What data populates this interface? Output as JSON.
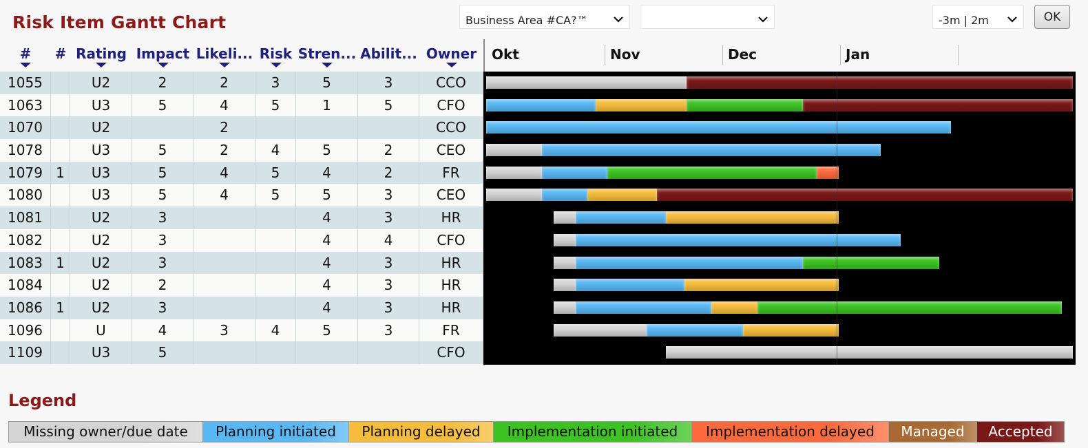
{
  "title": "Risk Item Gantt Chart",
  "filters": {
    "business_area": "Business Area #CA?™",
    "second_filter": "",
    "range": "-3m | 2m",
    "ok_label": "OK"
  },
  "columns": [
    {
      "label": "#",
      "sortable": true
    },
    {
      "label": "#",
      "sortable": false
    },
    {
      "label": "Rating",
      "sortable": true
    },
    {
      "label": "Impact",
      "sortable": true
    },
    {
      "label": "Likeli...",
      "sortable": true
    },
    {
      "label": "Risk",
      "sortable": true
    },
    {
      "label": "Stren...",
      "sortable": true
    },
    {
      "label": "Abilit...",
      "sortable": false
    },
    {
      "label": "Owner",
      "sortable": true
    }
  ],
  "months": [
    "Okt",
    "Nov",
    "Dec",
    "Jan"
  ],
  "status_colors": {
    "missing": "#d4d4d4",
    "planning": "#59b8f3",
    "planning_delayed": "#f6bd3c",
    "implementation": "#3cc323",
    "implementation_delayed": "#ff6a3d",
    "managed": "#a86a32",
    "accepted": "#7a1818"
  },
  "legend": {
    "title": "Legend",
    "items": [
      {
        "label": "Missing owner/due date",
        "status": "missing",
        "text_color": "#111"
      },
      {
        "label": "Planning initiated",
        "status": "planning",
        "text_color": "#111"
      },
      {
        "label": "Planning delayed",
        "status": "planning_delayed",
        "text_color": "#111"
      },
      {
        "label": "Implementation initiated",
        "status": "implementation",
        "text_color": "#111"
      },
      {
        "label": "Implementation delayed",
        "status": "implementation_delayed",
        "text_color": "#111"
      },
      {
        "label": "Managed",
        "status": "managed",
        "text_color": "#ffffff"
      },
      {
        "label": "Accepted",
        "status": "accepted",
        "text_color": "#ffffff"
      }
    ]
  },
  "rows": [
    {
      "id": "1055",
      "n": "",
      "rating": "U2",
      "impact": "2",
      "likelihood": "2",
      "risk": "3",
      "strength": "5",
      "ability": "3",
      "owner": "CCO",
      "segments": [
        [
          "missing",
          0.5,
          34.3
        ],
        [
          "accepted",
          34.3,
          99.5
        ]
      ]
    },
    {
      "id": "1063",
      "n": "",
      "rating": "U3",
      "impact": "5",
      "likelihood": "4",
      "risk": "5",
      "strength": "1",
      "ability": "5",
      "owner": "CFO",
      "segments": [
        [
          "planning",
          0.5,
          19.0
        ],
        [
          "planning_delayed",
          19.0,
          34.3
        ],
        [
          "implementation",
          34.3,
          54.0
        ],
        [
          "accepted",
          54.0,
          99.5
        ]
      ]
    },
    {
      "id": "1070",
      "n": "",
      "rating": "U2",
      "impact": "",
      "likelihood": "2",
      "risk": "",
      "strength": "",
      "ability": "",
      "owner": "CCO",
      "segments": [
        [
          "planning",
          0.5,
          79.0
        ]
      ]
    },
    {
      "id": "1078",
      "n": "",
      "rating": "U3",
      "impact": "5",
      "likelihood": "2",
      "risk": "4",
      "strength": "5",
      "ability": "2",
      "owner": "CEO",
      "segments": [
        [
          "missing",
          0.5,
          9.9
        ],
        [
          "planning",
          9.9,
          67.1
        ]
      ]
    },
    {
      "id": "1079",
      "n": "1",
      "rating": "U3",
      "impact": "5",
      "likelihood": "4",
      "risk": "5",
      "strength": "4",
      "ability": "2",
      "owner": "FR",
      "segments": [
        [
          "missing",
          0.5,
          9.9
        ],
        [
          "planning",
          9.9,
          20.9
        ],
        [
          "implementation",
          20.9,
          56.3
        ],
        [
          "implementation_delayed",
          56.3,
          60.0
        ]
      ]
    },
    {
      "id": "1080",
      "n": "",
      "rating": "U3",
      "impact": "5",
      "likelihood": "4",
      "risk": "5",
      "strength": "5",
      "ability": "3",
      "owner": "CEO",
      "segments": [
        [
          "missing",
          0.5,
          9.9
        ],
        [
          "planning",
          9.9,
          17.6
        ],
        [
          "planning_delayed",
          17.6,
          29.3
        ],
        [
          "accepted",
          29.3,
          99.5
        ]
      ]
    },
    {
      "id": "1081",
      "n": "",
      "rating": "U2",
      "impact": "3",
      "likelihood": "",
      "risk": "",
      "strength": "4",
      "ability": "3",
      "owner": "HR",
      "segments": [
        [
          "missing",
          11.9,
          15.6
        ],
        [
          "planning",
          15.6,
          30.8
        ],
        [
          "planning_delayed",
          30.8,
          60.0
        ]
      ]
    },
    {
      "id": "1082",
      "n": "",
      "rating": "U2",
      "impact": "3",
      "likelihood": "",
      "risk": "",
      "strength": "4",
      "ability": "4",
      "owner": "CFO",
      "segments": [
        [
          "missing",
          11.9,
          15.6
        ],
        [
          "planning",
          15.6,
          70.5
        ]
      ]
    },
    {
      "id": "1083",
      "n": "1",
      "rating": "U2",
      "impact": "3",
      "likelihood": "",
      "risk": "",
      "strength": "4",
      "ability": "3",
      "owner": "HR",
      "segments": [
        [
          "missing",
          11.9,
          15.6
        ],
        [
          "planning",
          15.6,
          54.0
        ],
        [
          "implementation",
          54.0,
          77.0
        ]
      ]
    },
    {
      "id": "1084",
      "n": "",
      "rating": "U2",
      "impact": "2",
      "likelihood": "",
      "risk": "",
      "strength": "4",
      "ability": "3",
      "owner": "HR",
      "segments": [
        [
          "missing",
          11.9,
          15.6
        ],
        [
          "planning",
          15.6,
          34.0
        ],
        [
          "planning_delayed",
          34.0,
          60.0
        ]
      ]
    },
    {
      "id": "1086",
      "n": "1",
      "rating": "U2",
      "impact": "3",
      "likelihood": "",
      "risk": "",
      "strength": "4",
      "ability": "3",
      "owner": "HR",
      "segments": [
        [
          "missing",
          11.9,
          15.6
        ],
        [
          "planning",
          15.6,
          38.5
        ],
        [
          "planning_delayed",
          38.5,
          46.3
        ],
        [
          "implementation",
          46.3,
          97.7
        ]
      ]
    },
    {
      "id": "1096",
      "n": "",
      "rating": "U",
      "impact": "4",
      "likelihood": "3",
      "risk": "4",
      "strength": "5",
      "ability": "3",
      "owner": "FR",
      "segments": [
        [
          "missing",
          11.9,
          27.6
        ],
        [
          "planning",
          27.6,
          43.8
        ],
        [
          "planning_delayed",
          43.8,
          60.0
        ]
      ]
    },
    {
      "id": "1109",
      "n": "",
      "rating": "U3",
      "impact": "5",
      "likelihood": "",
      "risk": "",
      "strength": "",
      "ability": "",
      "owner": "CFO",
      "segments": [
        [
          "missing",
          30.8,
          99.5
        ]
      ]
    }
  ]
}
